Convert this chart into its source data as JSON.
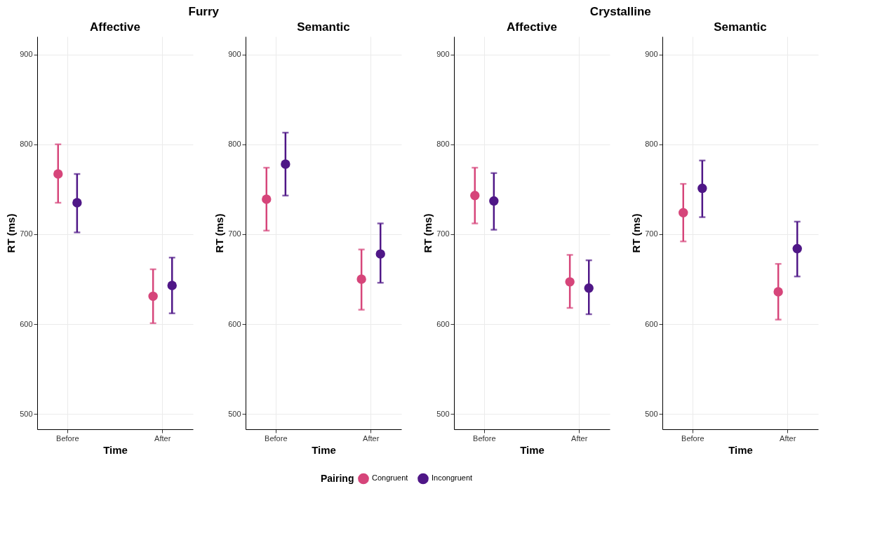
{
  "chart_data": [
    {
      "type": "scatter",
      "title": "Affective",
      "annotations": [
        "Furry"
      ],
      "xlabel": "Time",
      "ylabel": "RT (ms)",
      "categories": [
        "Before",
        "After"
      ],
      "ylim": [
        483,
        920
      ],
      "yticks": [
        500,
        600,
        700,
        800,
        900
      ],
      "grid": true,
      "marker": "circle",
      "legend": "bottom",
      "legend_title": "Pairing",
      "series": [
        {
          "name": "Congruent",
          "color": "#d6457a",
          "values": [
            767,
            631
          ],
          "errors": [
            [
              735,
              800
            ],
            [
              601,
              661
            ]
          ]
        },
        {
          "name": "Incongruent",
          "color": "#4f1787",
          "values": [
            735,
            643
          ],
          "errors": [
            [
              702,
              767
            ],
            [
              612,
              674
            ]
          ]
        }
      ]
    },
    {
      "type": "scatter",
      "title": "Semantic",
      "xlabel": "Time",
      "ylabel": "RT (ms)",
      "categories": [
        "Before",
        "After"
      ],
      "ylim": [
        483,
        920
      ],
      "yticks": [
        500,
        600,
        700,
        800,
        900
      ],
      "grid": true,
      "marker": "circle",
      "series": [
        {
          "name": "Congruent",
          "color": "#d6457a",
          "values": [
            739,
            650
          ],
          "errors": [
            [
              704,
              774
            ],
            [
              616,
              683
            ]
          ]
        },
        {
          "name": "Incongruent",
          "color": "#4f1787",
          "values": [
            778,
            678
          ],
          "errors": [
            [
              743,
              813
            ],
            [
              646,
              712
            ]
          ]
        }
      ]
    },
    {
      "type": "scatter",
      "title": "Affective",
      "annotations": [
        "Crystalline"
      ],
      "xlabel": "Time",
      "ylabel": "RT (ms)",
      "categories": [
        "Before",
        "After"
      ],
      "ylim": [
        483,
        920
      ],
      "yticks": [
        500,
        600,
        700,
        800,
        900
      ],
      "grid": true,
      "marker": "circle",
      "series": [
        {
          "name": "Congruent",
          "color": "#d6457a",
          "values": [
            743,
            647
          ],
          "errors": [
            [
              712,
              774
            ],
            [
              618,
              677
            ]
          ]
        },
        {
          "name": "Incongruent",
          "color": "#4f1787",
          "values": [
            737,
            640
          ],
          "errors": [
            [
              705,
              768
            ],
            [
              611,
              671
            ]
          ]
        }
      ]
    },
    {
      "type": "scatter",
      "title": "Semantic",
      "xlabel": "Time",
      "ylabel": "RT (ms)",
      "categories": [
        "Before",
        "After"
      ],
      "ylim": [
        483,
        920
      ],
      "yticks": [
        500,
        600,
        700,
        800,
        900
      ],
      "grid": true,
      "marker": "circle",
      "series": [
        {
          "name": "Congruent",
          "color": "#d6457a",
          "values": [
            724,
            636
          ],
          "errors": [
            [
              692,
              756
            ],
            [
              605,
              667
            ]
          ]
        },
        {
          "name": "Incongruent",
          "color": "#4f1787",
          "values": [
            751,
            684
          ],
          "errors": [
            [
              719,
              782
            ],
            [
              653,
              714
            ]
          ]
        }
      ]
    }
  ]
}
